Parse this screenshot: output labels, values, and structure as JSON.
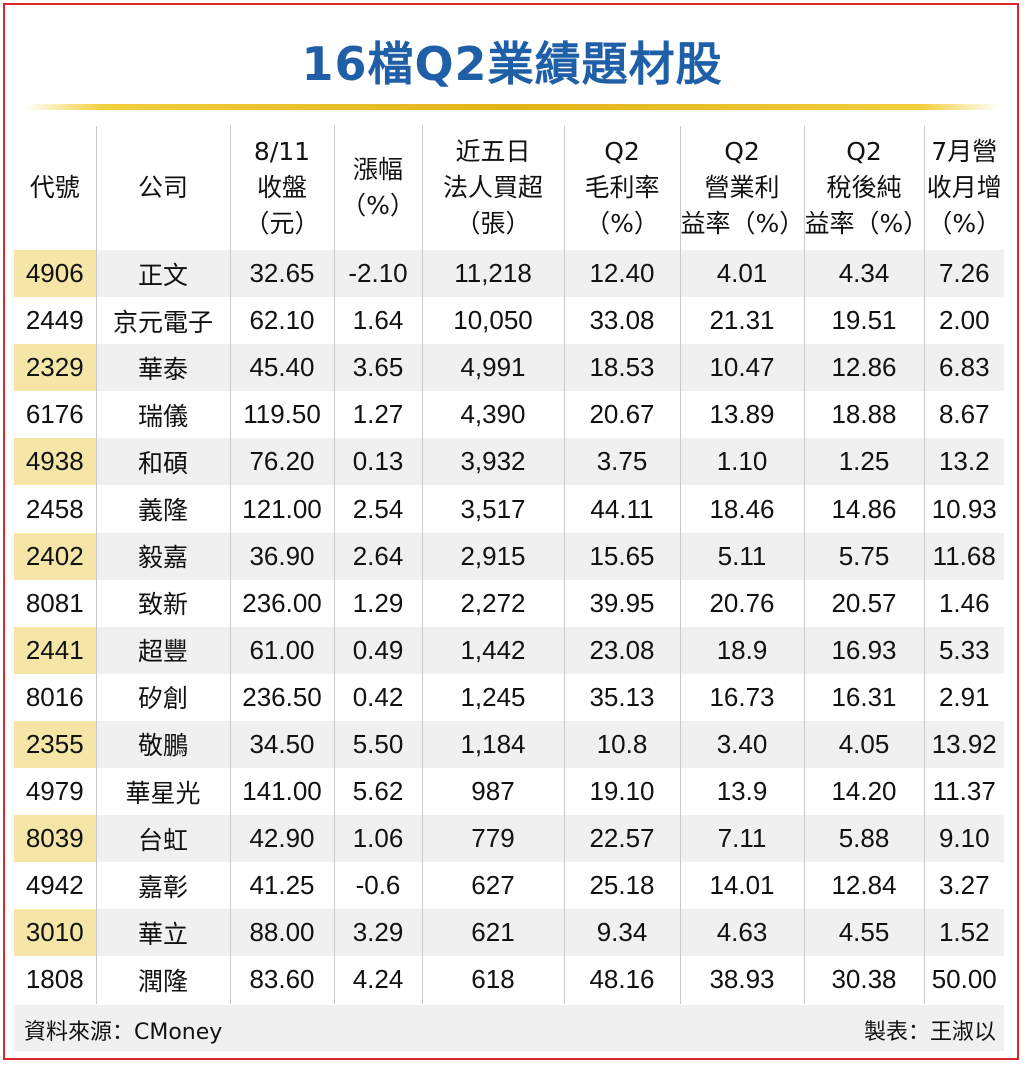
{
  "title": "16檔Q2業績題材股",
  "headers": [
    [
      "代號"
    ],
    [
      "公司"
    ],
    [
      "8/11",
      "收盤",
      "（元）"
    ],
    [
      "漲幅",
      "（%）"
    ],
    [
      "近五日",
      "法人買超",
      "（張）"
    ],
    [
      "Q2",
      "毛利率",
      "（%）"
    ],
    [
      "Q2",
      "營業利",
      "益率（%）"
    ],
    [
      "Q2",
      "稅後純",
      "益率（%）"
    ],
    [
      "7月營",
      "收月增",
      "（%）"
    ]
  ],
  "rows": [
    [
      "4906",
      "正文",
      "32.65",
      "-2.10",
      "11,218",
      "12.40",
      "4.01",
      "4.34",
      "7.26"
    ],
    [
      "2449",
      "京元電子",
      "62.10",
      "1.64",
      "10,050",
      "33.08",
      "21.31",
      "19.51",
      "2.00"
    ],
    [
      "2329",
      "華泰",
      "45.40",
      "3.65",
      "4,991",
      "18.53",
      "10.47",
      "12.86",
      "6.83"
    ],
    [
      "6176",
      "瑞儀",
      "119.50",
      "1.27",
      "4,390",
      "20.67",
      "13.89",
      "18.88",
      "8.67"
    ],
    [
      "4938",
      "和碩",
      "76.20",
      "0.13",
      "3,932",
      "3.75",
      "1.10",
      "1.25",
      "13.2"
    ],
    [
      "2458",
      "義隆",
      "121.00",
      "2.54",
      "3,517",
      "44.11",
      "18.46",
      "14.86",
      "10.93"
    ],
    [
      "2402",
      "毅嘉",
      "36.90",
      "2.64",
      "2,915",
      "15.65",
      "5.11",
      "5.75",
      "11.68"
    ],
    [
      "8081",
      "致新",
      "236.00",
      "1.29",
      "2,272",
      "39.95",
      "20.76",
      "20.57",
      "1.46"
    ],
    [
      "2441",
      "超豐",
      "61.00",
      "0.49",
      "1,442",
      "23.08",
      "18.9",
      "16.93",
      "5.33"
    ],
    [
      "8016",
      "矽創",
      "236.50",
      "0.42",
      "1,245",
      "35.13",
      "16.73",
      "16.31",
      "2.91"
    ],
    [
      "2355",
      "敬鵬",
      "34.50",
      "5.50",
      "1,184",
      "10.8",
      "3.40",
      "4.05",
      "13.92"
    ],
    [
      "4979",
      "華星光",
      "141.00",
      "5.62",
      "987",
      "19.10",
      "13.9",
      "14.20",
      "11.37"
    ],
    [
      "8039",
      "台虹",
      "42.90",
      "1.06",
      "779",
      "22.57",
      "7.11",
      "5.88",
      "9.10"
    ],
    [
      "4942",
      "嘉彰",
      "41.25",
      "-0.6",
      "627",
      "25.18",
      "14.01",
      "12.84",
      "3.27"
    ],
    [
      "3010",
      "華立",
      "88.00",
      "3.29",
      "621",
      "9.34",
      "4.63",
      "4.55",
      "1.52"
    ],
    [
      "1808",
      "潤隆",
      "83.60",
      "4.24",
      "618",
      "48.16",
      "38.93",
      "30.38",
      "50.00"
    ]
  ],
  "footer": {
    "source": "資料來源：CMoney",
    "maker": "製表：王淑以"
  },
  "colors": {
    "title": "#1f5fa8",
    "border": "#d8282c",
    "rule": "#e4b21a",
    "code_highlight": "#f5e6a8",
    "stripe": "#f0f0f0"
  }
}
